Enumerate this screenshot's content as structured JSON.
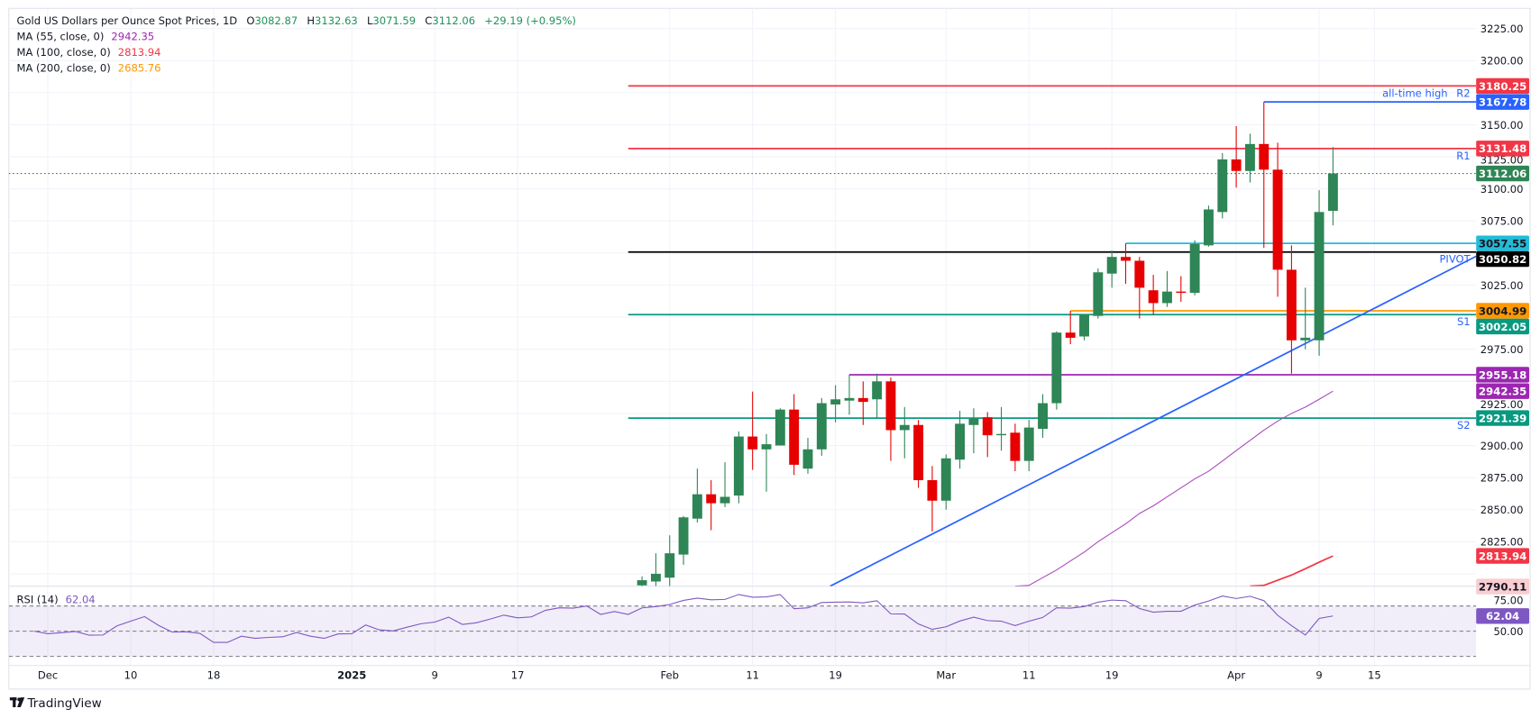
{
  "header": {
    "symbol": "Gold US Dollars per Ounce Spot Prices, 1D",
    "o_label": "O",
    "o": "3082.87",
    "h_label": "H",
    "h": "3132.63",
    "l_label": "L",
    "l": "3071.59",
    "c_label": "C",
    "c": "3112.06",
    "change": "+29.19 (+0.95%)",
    "value_color": "#22915c"
  },
  "indicators": [
    {
      "label": "MA (55, close, 0)",
      "value": "2942.35",
      "color": "#9c27b0"
    },
    {
      "label": "MA (100, close, 0)",
      "value": "2813.94",
      "color": "#f23645"
    },
    {
      "label": "MA (200, close, 0)",
      "value": "2685.76",
      "color": "#ff9800"
    }
  ],
  "rsi_legend": {
    "label": "RSI (14)",
    "value": "62.04",
    "color": "#7e57c2"
  },
  "branding": {
    "logo_text": "TradingView",
    "logo_icon": "tradingview-logo-icon"
  },
  "colors": {
    "up": "#2e8555",
    "down": "#e60000",
    "grid": "#f0f3fa",
    "rsi": "#7e57c2",
    "trendline": "#2962ff"
  },
  "chart_data": {
    "type": "candlestick",
    "price_axis": {
      "ticks": [
        "3225.00",
        "3200.00",
        "3150.00",
        "3125.00",
        "3100.00",
        "3075.00",
        "3025.00",
        "2975.00",
        "2925.00",
        "2900.00",
        "2875.00",
        "2850.00",
        "2825.00"
      ],
      "range": [
        2791,
        3240
      ]
    },
    "time_axis": {
      "labels": [
        {
          "text": "Dec",
          "date": "2024-12-02"
        },
        {
          "text": "10",
          "date": "2024-12-10"
        },
        {
          "text": "18",
          "date": "2024-12-18"
        },
        {
          "text": "2025",
          "date": "2025-01-01"
        },
        {
          "text": "9",
          "date": "2025-01-09"
        },
        {
          "text": "17",
          "date": "2025-01-17"
        },
        {
          "text": "Feb",
          "date": "2025-02-03"
        },
        {
          "text": "11",
          "date": "2025-02-11"
        },
        {
          "text": "19",
          "date": "2025-02-19"
        },
        {
          "text": "Mar",
          "date": "2025-03-03"
        },
        {
          "text": "11",
          "date": "2025-03-11"
        },
        {
          "text": "19",
          "date": "2025-03-19"
        },
        {
          "text": "Apr",
          "date": "2025-04-01"
        },
        {
          "text": "9",
          "date": "2025-04-09"
        },
        {
          "text": "15",
          "date": "2025-04-15"
        }
      ]
    },
    "candles": [
      {
        "d": "2025-01-30",
        "o": 2791,
        "h": 2798,
        "l": 2788,
        "c": 2795
      },
      {
        "d": "2025-01-31",
        "o": 2794,
        "h": 2816,
        "l": 2790,
        "c": 2800
      },
      {
        "d": "2025-02-03",
        "o": 2797,
        "h": 2830,
        "l": 2790,
        "c": 2816
      },
      {
        "d": "2025-02-04",
        "o": 2815,
        "h": 2845,
        "l": 2807,
        "c": 2844
      },
      {
        "d": "2025-02-05",
        "o": 2843,
        "h": 2882,
        "l": 2840,
        "c": 2862
      },
      {
        "d": "2025-02-06",
        "o": 2862,
        "h": 2873,
        "l": 2834,
        "c": 2855
      },
      {
        "d": "2025-02-07",
        "o": 2855,
        "h": 2887,
        "l": 2852,
        "c": 2860
      },
      {
        "d": "2025-02-10",
        "o": 2861,
        "h": 2911,
        "l": 2855,
        "c": 2907
      },
      {
        "d": "2025-02-11",
        "o": 2907,
        "h": 2942,
        "l": 2881,
        "c": 2897
      },
      {
        "d": "2025-02-12",
        "o": 2897,
        "h": 2909,
        "l": 2864,
        "c": 2901
      },
      {
        "d": "2025-02-13",
        "o": 2900,
        "h": 2929,
        "l": 2900,
        "c": 2928
      },
      {
        "d": "2025-02-14",
        "o": 2928,
        "h": 2940,
        "l": 2877,
        "c": 2885
      },
      {
        "d": "2025-02-17",
        "o": 2882,
        "h": 2906,
        "l": 2878,
        "c": 2897
      },
      {
        "d": "2025-02-18",
        "o": 2897,
        "h": 2937,
        "l": 2892,
        "c": 2933
      },
      {
        "d": "2025-02-19",
        "o": 2932,
        "h": 2947,
        "l": 2918,
        "c": 2936
      },
      {
        "d": "2025-02-20",
        "o": 2935,
        "h": 2955.18,
        "l": 2924,
        "c": 2937
      },
      {
        "d": "2025-02-21",
        "o": 2937,
        "h": 2950,
        "l": 2916,
        "c": 2934
      },
      {
        "d": "2025-02-24",
        "o": 2936,
        "h": 2956,
        "l": 2921,
        "c": 2950
      },
      {
        "d": "2025-02-25",
        "o": 2950,
        "h": 2953,
        "l": 2888,
        "c": 2912
      },
      {
        "d": "2025-02-26",
        "o": 2912,
        "h": 2930,
        "l": 2890,
        "c": 2916
      },
      {
        "d": "2025-02-27",
        "o": 2916,
        "h": 2920,
        "l": 2867,
        "c": 2873
      },
      {
        "d": "2025-02-28",
        "o": 2873,
        "h": 2884,
        "l": 2833,
        "c": 2857
      },
      {
        "d": "2025-03-03",
        "o": 2857,
        "h": 2893,
        "l": 2850,
        "c": 2890
      },
      {
        "d": "2025-03-04",
        "o": 2889,
        "h": 2927,
        "l": 2882,
        "c": 2917
      },
      {
        "d": "2025-03-05",
        "o": 2916,
        "h": 2929,
        "l": 2894,
        "c": 2921
      },
      {
        "d": "2025-03-06",
        "o": 2922,
        "h": 2926,
        "l": 2891,
        "c": 2908
      },
      {
        "d": "2025-03-07",
        "o": 2908,
        "h": 2930,
        "l": 2896,
        "c": 2909
      },
      {
        "d": "2025-03-10",
        "o": 2910,
        "h": 2917,
        "l": 2880,
        "c": 2888
      },
      {
        "d": "2025-03-11",
        "o": 2888,
        "h": 2920,
        "l": 2880,
        "c": 2914
      },
      {
        "d": "2025-03-12",
        "o": 2913,
        "h": 2940,
        "l": 2906,
        "c": 2933
      },
      {
        "d": "2025-03-13",
        "o": 2933,
        "h": 2989,
        "l": 2928,
        "c": 2988
      },
      {
        "d": "2025-03-14",
        "o": 2988,
        "h": 3004.99,
        "l": 2979,
        "c": 2984
      },
      {
        "d": "2025-03-17",
        "o": 2985,
        "h": 3002,
        "l": 2982,
        "c": 3002
      },
      {
        "d": "2025-03-18",
        "o": 3001,
        "h": 3038,
        "l": 2999,
        "c": 3035
      },
      {
        "d": "2025-03-19",
        "o": 3034,
        "h": 3052,
        "l": 3023,
        "c": 3047
      },
      {
        "d": "2025-03-20",
        "o": 3047,
        "h": 3057.55,
        "l": 3026,
        "c": 3044
      },
      {
        "d": "2025-03-21",
        "o": 3044,
        "h": 3047,
        "l": 2999,
        "c": 3023
      },
      {
        "d": "2025-03-24",
        "o": 3021,
        "h": 3033,
        "l": 3002,
        "c": 3011
      },
      {
        "d": "2025-03-25",
        "o": 3011,
        "h": 3036,
        "l": 3008,
        "c": 3020
      },
      {
        "d": "2025-03-26",
        "o": 3020,
        "h": 3032,
        "l": 3012,
        "c": 3019
      },
      {
        "d": "2025-03-27",
        "o": 3019,
        "h": 3060,
        "l": 3017,
        "c": 3057
      },
      {
        "d": "2025-03-28",
        "o": 3056,
        "h": 3087,
        "l": 3055,
        "c": 3084
      },
      {
        "d": "2025-03-31",
        "o": 3082,
        "h": 3128,
        "l": 3077,
        "c": 3123
      },
      {
        "d": "2025-04-01",
        "o": 3123,
        "h": 3149,
        "l": 3101,
        "c": 3114
      },
      {
        "d": "2025-04-02",
        "o": 3114,
        "h": 3143,
        "l": 3105,
        "c": 3135
      },
      {
        "d": "2025-04-03",
        "o": 3135,
        "h": 3167.78,
        "l": 3054,
        "c": 3115
      },
      {
        "d": "2025-04-04",
        "o": 3115,
        "h": 3136,
        "l": 3016,
        "c": 3037
      },
      {
        "d": "2025-04-07",
        "o": 3037,
        "h": 3056,
        "l": 2956,
        "c": 2982
      },
      {
        "d": "2025-04-08",
        "o": 2982,
        "h": 3023,
        "l": 2975,
        "c": 2984
      },
      {
        "d": "2025-04-09",
        "o": 2982,
        "h": 3099,
        "l": 2970,
        "c": 3082
      },
      {
        "d": "2025-04-10",
        "o": 3082.87,
        "h": 3132.63,
        "l": 3071.59,
        "c": 3112.06
      }
    ],
    "moving_averages": [
      {
        "name": "MA (55, close, 0)",
        "color": "#ab47bc",
        "points": [
          [
            "2025-03-10",
            2785
          ],
          [
            "2025-03-11",
            2791
          ],
          [
            "2025-03-12",
            2797
          ],
          [
            "2025-03-13",
            2803
          ],
          [
            "2025-03-14",
            2810
          ],
          [
            "2025-03-17",
            2817
          ],
          [
            "2025-03-18",
            2825
          ],
          [
            "2025-03-19",
            2832
          ],
          [
            "2025-03-20",
            2839
          ],
          [
            "2025-03-21",
            2847
          ],
          [
            "2025-03-24",
            2853
          ],
          [
            "2025-03-25",
            2860
          ],
          [
            "2025-03-26",
            2867
          ],
          [
            "2025-03-27",
            2874
          ],
          [
            "2025-03-28",
            2880
          ],
          [
            "2025-03-31",
            2888
          ],
          [
            "2025-04-01",
            2896
          ],
          [
            "2025-04-02",
            2904
          ],
          [
            "2025-04-03",
            2912
          ],
          [
            "2025-04-04",
            2919
          ],
          [
            "2025-04-07",
            2925
          ],
          [
            "2025-04-08",
            2930
          ],
          [
            "2025-04-09",
            2936
          ],
          [
            "2025-04-10",
            2942.35
          ]
        ]
      },
      {
        "name": "MA (100, close, 0)",
        "color": "#f23645",
        "points": [
          [
            "2025-04-02",
            2786
          ],
          [
            "2025-04-03",
            2791
          ],
          [
            "2025-04-04",
            2795
          ],
          [
            "2025-04-07",
            2799
          ],
          [
            "2025-04-08",
            2804
          ],
          [
            "2025-04-09",
            2809
          ],
          [
            "2025-04-10",
            2813.94
          ]
        ]
      }
    ],
    "trendline": {
      "color": "#2962ff",
      "points": [
        [
          "2025-02-28",
          2831
        ],
        [
          "2025-04-09",
          2985
        ]
      ],
      "extend": "right"
    },
    "levels": [
      {
        "price": 3180.25,
        "from": "2025-01-29",
        "color": "#f23645",
        "tag": "R2"
      },
      {
        "price": 3167.78,
        "from": "2025-04-03",
        "color": "#2962ff",
        "note": "all-time high"
      },
      {
        "price": 3131.48,
        "from": "2025-01-29",
        "color": "#f23645",
        "tag": "R1"
      },
      {
        "price": 3057.55,
        "from": "2025-03-20",
        "color": "#22bcd8"
      },
      {
        "price": 3050.82,
        "from": "2025-01-29",
        "color": "#000000",
        "tag": "PIVOT"
      },
      {
        "price": 3004.99,
        "from": "2025-03-14",
        "color": "#ff9800"
      },
      {
        "price": 3002.05,
        "from": "2025-01-29",
        "color": "#089981",
        "tag": "S1"
      },
      {
        "price": 2955.18,
        "from": "2025-02-20",
        "color": "#9c27b0"
      },
      {
        "price": 2921.39,
        "from": "2025-01-29",
        "color": "#089981",
        "tag": "S2"
      }
    ],
    "last_price": 3112.06,
    "price_badges": [
      {
        "price": 3180.25,
        "text": "3180.25",
        "bg": "#f23645",
        "fg": "#ffffff"
      },
      {
        "price": 3167.78,
        "text": "3167.78",
        "bg": "#2962ff",
        "fg": "#ffffff"
      },
      {
        "price": 3131.48,
        "text": "3131.48",
        "bg": "#f23645",
        "fg": "#ffffff"
      },
      {
        "price": 3112.06,
        "text": "3112.06",
        "bg": "#2e8555",
        "fg": "#ffffff"
      },
      {
        "price": 3057.55,
        "text": "3057.55",
        "bg": "#22bcd8",
        "fg": "#131722"
      },
      {
        "price": 3050.82,
        "text": "3050.82",
        "bg": "#000000",
        "fg": "#ffffff"
      },
      {
        "price": 3004.99,
        "text": "3004.99",
        "bg": "#ff9800",
        "fg": "#131722"
      },
      {
        "price": 3002.05,
        "text": "3002.05",
        "bg": "#089981",
        "fg": "#ffffff"
      },
      {
        "price": 2955.18,
        "text": "2955.18",
        "bg": "#9c27b0",
        "fg": "#ffffff"
      },
      {
        "price": 2942.35,
        "text": "2942.35",
        "bg": "#9c27b0",
        "fg": "#ffffff"
      },
      {
        "price": 2921.39,
        "text": "2921.39",
        "bg": "#089981",
        "fg": "#ffffff"
      },
      {
        "price": 2813.94,
        "text": "2813.94",
        "bg": "#f23645",
        "fg": "#ffffff"
      },
      {
        "price": 2790.11,
        "text": "2790.11",
        "bg": "#f9cdd1",
        "fg": "#131722"
      }
    ],
    "rsi": {
      "period": 14,
      "levels": [
        70,
        50,
        30
      ],
      "ticks": [
        {
          "value": 75,
          "text": "75.00"
        },
        {
          "value": 50,
          "text": "50.00"
        }
      ],
      "badge": {
        "value": 62.04,
        "text": "62.04",
        "bg": "#7e57c2"
      },
      "dates": [
        "2024-11-29",
        "2024-12-02",
        "2024-12-03",
        "2024-12-04",
        "2024-12-05",
        "2024-12-06",
        "2024-12-09",
        "2024-12-10",
        "2024-12-11",
        "2024-12-12",
        "2024-12-13",
        "2024-12-16",
        "2024-12-17",
        "2024-12-18",
        "2024-12-19",
        "2024-12-20",
        "2024-12-23",
        "2024-12-24",
        "2024-12-25",
        "2024-12-26",
        "2024-12-27",
        "2024-12-30",
        "2024-12-31",
        "2025-01-01",
        "2025-01-02",
        "2025-01-03",
        "2025-01-06",
        "2025-01-07",
        "2025-01-08",
        "2025-01-09",
        "2025-01-10",
        "2025-01-13",
        "2025-01-14",
        "2025-01-15",
        "2025-01-16",
        "2025-01-17",
        "2025-01-20",
        "2025-01-21",
        "2025-01-22",
        "2025-01-23",
        "2025-01-24",
        "2025-01-27",
        "2025-01-28",
        "2025-01-29",
        "2025-01-30",
        "2025-01-31",
        "2025-02-03",
        "2025-02-04",
        "2025-02-05",
        "2025-02-06",
        "2025-02-07",
        "2025-02-10",
        "2025-02-11",
        "2025-02-12",
        "2025-02-13",
        "2025-02-14",
        "2025-02-17",
        "2025-02-18",
        "2025-02-19",
        "2025-02-20",
        "2025-02-21",
        "2025-02-24",
        "2025-02-25",
        "2025-02-26",
        "2025-02-27",
        "2025-02-28",
        "2025-03-03",
        "2025-03-04",
        "2025-03-05",
        "2025-03-06",
        "2025-03-07",
        "2025-03-10",
        "2025-03-11",
        "2025-03-12",
        "2025-03-13",
        "2025-03-14",
        "2025-03-17",
        "2025-03-18",
        "2025-03-19",
        "2025-03-20",
        "2025-03-21",
        "2025-03-24",
        "2025-03-25",
        "2025-03-26",
        "2025-03-27",
        "2025-03-28",
        "2025-03-31",
        "2025-04-01",
        "2025-04-02",
        "2025-04-03",
        "2025-04-04",
        "2025-04-07",
        "2025-04-08",
        "2025-04-09",
        "2025-04-10"
      ],
      "values": [
        50.0,
        48.0,
        48.8,
        49.8,
        46.8,
        47.0,
        54.2,
        57.9,
        61.6,
        54.7,
        49.3,
        49.5,
        48.3,
        41.1,
        41.1,
        46.0,
        44.3,
        45.1,
        45.6,
        49.0,
        46.0,
        44.3,
        47.8,
        48.0,
        54.9,
        51.0,
        50.2,
        53.2,
        55.9,
        57.2,
        61.1,
        55.4,
        56.7,
        59.6,
        62.8,
        60.6,
        61.4,
        66.5,
        68.5,
        68.3,
        70.0,
        63.3,
        65.6,
        63.3,
        68.5,
        69.5,
        71.2,
        74.4,
        76.2,
        74.9,
        75.2,
        79.1,
        76.9,
        77.2,
        79.1,
        67.8,
        68.5,
        72.7,
        73.0,
        73.2,
        72.5,
        74.2,
        63.8,
        63.6,
        55.7,
        51.5,
        53.5,
        58.1,
        61.1,
        58.4,
        57.9,
        54.4,
        57.9,
        60.9,
        68.5,
        68.3,
        69.5,
        73.0,
        74.7,
        74.2,
        68.0,
        65.1,
        65.8,
        65.8,
        70.7,
        74.0,
        77.9,
        75.9,
        77.7,
        74.2,
        62.6,
        54.4,
        47.0,
        60.1,
        62.04
      ]
    }
  }
}
